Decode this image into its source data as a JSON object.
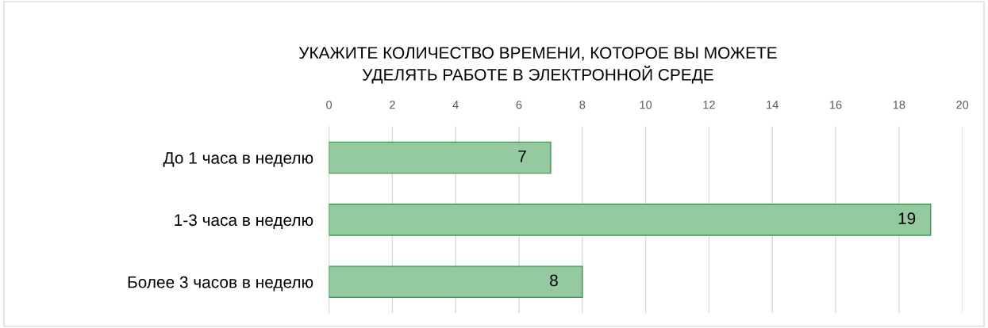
{
  "chart_data": {
    "type": "bar",
    "orientation": "horizontal",
    "title": "УКАЖИТЕ КОЛИЧЕСТВО ВРЕМЕНИ, КОТОРОЕ ВЫ МОЖЕТЕ\nУДЕЛЯТЬ РАБОТЕ В ЭЛЕКТРОННОЙ СРЕДЕ",
    "categories": [
      "До 1 часа в неделю",
      "1-3 часа в неделю",
      "Более 3 часов в неделю"
    ],
    "values": [
      7,
      19,
      8
    ],
    "color": "#95c9a0",
    "xlim": [
      0,
      20
    ],
    "xticks": [
      0,
      2,
      4,
      6,
      8,
      10,
      12,
      14,
      16,
      18,
      20
    ],
    "grid": "x",
    "data_labels": true
  }
}
